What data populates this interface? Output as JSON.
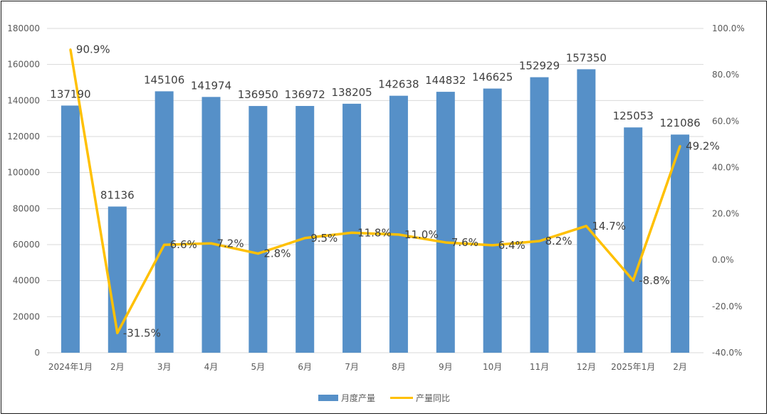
{
  "chart_data": {
    "type": "bar",
    "categories": [
      "2024年1月",
      "2月",
      "3月",
      "4月",
      "5月",
      "6月",
      "7月",
      "8月",
      "9月",
      "10月",
      "11月",
      "12月",
      "2025年1月",
      "2月"
    ],
    "series": [
      {
        "name": "月度产量",
        "type": "bar",
        "axis": "left",
        "values": [
          137190,
          81136,
          145106,
          141974,
          136950,
          136972,
          138205,
          142638,
          144832,
          146625,
          152929,
          157350,
          125053,
          121086
        ],
        "labels": [
          "137190",
          "81136",
          "145106",
          "141974",
          "136950",
          "136972",
          "138205",
          "142638",
          "144832",
          "146625",
          "152929",
          "157350",
          "125053",
          "121086"
        ]
      },
      {
        "name": "产量同比",
        "type": "line",
        "axis": "right",
        "values": [
          90.9,
          -31.5,
          6.6,
          7.2,
          2.8,
          9.5,
          11.8,
          11.0,
          7.6,
          6.4,
          8.2,
          14.7,
          -8.8,
          49.2
        ],
        "labels": [
          "90.9%",
          "-31.5%",
          "6.6%",
          "7.2%",
          "2.8%",
          "9.5%",
          "11.8%",
          "11.0%",
          "7.6%",
          "6.4%",
          "8.2%",
          "14.7%",
          "-8.8%",
          "49.2%"
        ]
      }
    ],
    "y_left": {
      "range": [
        0,
        180000
      ],
      "ticks": [
        "0",
        "20000",
        "40000",
        "60000",
        "80000",
        "100000",
        "120000",
        "140000",
        "160000",
        "180000"
      ]
    },
    "y_right": {
      "range": [
        -40,
        100
      ],
      "ticks": [
        "-40.0%",
        "-20.0%",
        "0.0%",
        "20.0%",
        "40.0%",
        "60.0%",
        "80.0%",
        "100.0%"
      ]
    },
    "grid": true,
    "legend_position": "bottom-center",
    "colors": {
      "bar": "#5690c8",
      "line": "#ffc000",
      "grid": "#d9d9d9",
      "text": "#595959"
    }
  }
}
